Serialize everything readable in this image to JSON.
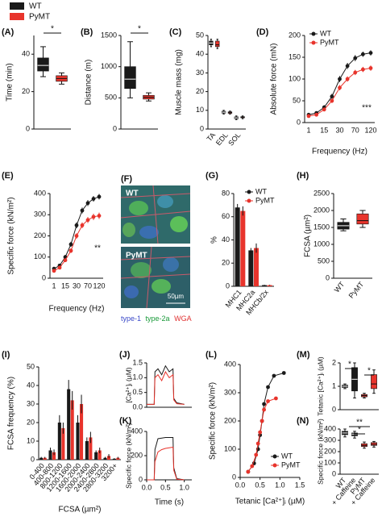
{
  "legend": [
    {
      "name": "WT",
      "color": "#1a1a1a"
    },
    {
      "name": "PyMT",
      "color": "#e8342c"
    }
  ],
  "image_panel": {
    "label": "(F)",
    "labels": [
      "WT",
      "PyMT"
    ],
    "scale_bar": "50µm",
    "caption": [
      {
        "text": "type-1",
        "color": "#3a49c8"
      },
      {
        "text": "type-2a",
        "color": "#1a9a3a"
      },
      {
        "text": "WGA",
        "color": "#e03030"
      }
    ]
  },
  "chart_data": [
    {
      "type": "box",
      "label": "(A)",
      "ylabel": "Time (min)",
      "ylim": [
        0,
        50
      ],
      "yticks": [
        0,
        20,
        40
      ],
      "annotations": [
        "*"
      ],
      "series": [
        {
          "color": "#1a1a1a",
          "min": [
            28
          ],
          "q1": [
            31
          ],
          "median": [
            34
          ],
          "q3": [
            38
          ],
          "max": [
            44
          ]
        },
        {
          "color": "#e8342c",
          "min": [
            24
          ],
          "q1": [
            25.5
          ],
          "median": [
            27
          ],
          "q3": [
            28.5
          ],
          "max": [
            30
          ]
        }
      ]
    },
    {
      "type": "box",
      "label": "(B)",
      "ylabel": "Distance (m)",
      "ylim": [
        0,
        1500
      ],
      "yticks": [
        0,
        500,
        1000,
        1500
      ],
      "annotations": [
        "*"
      ],
      "series": [
        {
          "color": "#1a1a1a",
          "min": [
            500
          ],
          "q1": [
            650
          ],
          "median": [
            800
          ],
          "q3": [
            1000
          ],
          "max": [
            1400
          ]
        },
        {
          "color": "#e8342c",
          "min": [
            450
          ],
          "q1": [
            480
          ],
          "median": [
            510
          ],
          "q3": [
            540
          ],
          "max": [
            580
          ]
        }
      ]
    },
    {
      "type": "box",
      "label": "(C)",
      "ylabel": "Muscle mass (mg)",
      "ylim": [
        0,
        50
      ],
      "yticks": [
        0,
        10,
        20,
        30,
        40,
        50
      ],
      "categories": [
        "TA",
        "EDL",
        "SOL"
      ],
      "series": [
        {
          "color": "#1a1a1a",
          "min": [
            44,
            8,
            5
          ],
          "q1": [
            45,
            8.5,
            5.5
          ],
          "median": [
            46,
            9,
            6
          ],
          "q3": [
            47,
            9.5,
            6.5
          ],
          "max": [
            48,
            10,
            7
          ]
        },
        {
          "color": "#e8342c",
          "min": [
            43,
            8,
            5.5
          ],
          "q1": [
            44,
            8.4,
            6
          ],
          "median": [
            45,
            8.8,
            6.3
          ],
          "q3": [
            47,
            9.2,
            6.6
          ],
          "max": [
            48,
            9.6,
            7
          ]
        }
      ]
    },
    {
      "type": "line",
      "label": "(D)",
      "ylabel": "Absolute force (mN)",
      "xlabel": "Frequency (Hz)",
      "ylim": [
        0,
        200
      ],
      "yticks": [
        0,
        50,
        100,
        150,
        200
      ],
      "legend": "upper left",
      "markers": true,
      "annotations": [
        "***"
      ],
      "categories": [
        "1",
        null,
        "15",
        null,
        "30",
        null,
        "70",
        null,
        "120"
      ],
      "series": [
        {
          "name": "WT",
          "color": "#1a1a1a",
          "values": [
            18,
            22,
            35,
            60,
            100,
            130,
            148,
            157,
            160
          ],
          "errors": [
            3,
            3,
            5,
            6,
            7,
            7,
            7,
            6,
            6
          ]
        },
        {
          "name": "PyMT",
          "color": "#e8342c",
          "values": [
            15,
            18,
            30,
            50,
            80,
            100,
            115,
            122,
            125
          ],
          "errors": [
            3,
            3,
            4,
            5,
            6,
            6,
            6,
            6,
            6
          ]
        }
      ]
    },
    {
      "type": "line",
      "label": "(E)",
      "ylabel": "Specific force (kN/m²)",
      "xlabel": "Frequency (Hz)",
      "ylim": [
        0,
        400
      ],
      "yticks": [
        0,
        100,
        200,
        300,
        400
      ],
      "markers": true,
      "annotations": [
        "**"
      ],
      "categories": [
        "1",
        null,
        "15",
        null,
        "30",
        null,
        "70",
        null,
        "120"
      ],
      "series": [
        {
          "color": "#1a1a1a",
          "values": [
            45,
            60,
            100,
            160,
            250,
            320,
            355,
            375,
            385
          ],
          "errors": [
            6,
            8,
            10,
            12,
            14,
            14,
            14,
            13,
            13
          ]
        },
        {
          "color": "#e8342c",
          "values": [
            35,
            50,
            85,
            130,
            200,
            250,
            275,
            290,
            295
          ],
          "errors": [
            6,
            7,
            9,
            11,
            13,
            14,
            14,
            15,
            15
          ]
        }
      ]
    },
    {
      "type": "bar",
      "label": "(G)",
      "ylabel": "%",
      "ylim": [
        0,
        80
      ],
      "yticks": [
        0,
        20,
        40,
        60,
        80
      ],
      "legend": "upper right",
      "categories": [
        "MHC1",
        "MHC2a",
        "MHCb/2x"
      ],
      "series": [
        {
          "name": "WT",
          "color": "#1a1a1a",
          "values": [
            68,
            31,
            1
          ],
          "errors": [
            3,
            2,
            0.3
          ]
        },
        {
          "name": "PyMT",
          "color": "#e8342c",
          "values": [
            65,
            33,
            1
          ],
          "errors": [
            4,
            4,
            0.3
          ]
        }
      ]
    },
    {
      "type": "box",
      "label": "(H)",
      "ylabel": "FCSA (µm²)",
      "ylim": [
        0,
        2500
      ],
      "yticks": [
        0,
        500,
        1000,
        1500,
        2000,
        2500
      ],
      "categories": [
        "WT",
        "PyMT"
      ],
      "series": [
        {
          "color": "#1a1a1a",
          "min": [
            1400
          ],
          "q1": [
            1450
          ],
          "median": [
            1550
          ],
          "q3": [
            1650
          ],
          "max": [
            1750
          ]
        },
        {
          "color": "#e8342c",
          "min": [
            1500
          ],
          "q1": [
            1600
          ],
          "median": [
            1700
          ],
          "q3": [
            1900
          ],
          "max": [
            2000
          ]
        }
      ]
    },
    {
      "type": "bar",
      "label": "(I)",
      "ylabel": "FCSA frequency (%)",
      "xlabel": "FCSA (µm²)",
      "ylim": [
        0,
        50
      ],
      "yticks": [
        0,
        10,
        20,
        30,
        40,
        50
      ],
      "categories": [
        "0-400",
        "400-800",
        "800-1200",
        "1200-1600",
        "1600-2000",
        "2000-2400",
        "2400-2800",
        "2800-3200",
        "3200+"
      ],
      "series": [
        {
          "color": "#1a1a1a",
          "values": [
            1,
            5,
            20,
            38,
            20,
            10,
            4,
            1,
            0.5
          ],
          "errors": [
            0.5,
            1.5,
            4,
            5,
            4,
            2,
            1,
            0.5,
            0.3
          ]
        },
        {
          "color": "#e8342c",
          "values": [
            1,
            4,
            17,
            32,
            30,
            12,
            5,
            2,
            1
          ],
          "errors": [
            0.5,
            1.5,
            3,
            5,
            5,
            3,
            1.5,
            1,
            0.5
          ]
        }
      ]
    },
    {
      "type": "line",
      "label": "(J)",
      "ylabel": "[Ca²⁺]ᵢ (µM)",
      "ylim": [
        0,
        1.5
      ],
      "yticks": [
        {
          "value": 0,
          "label": "0.0"
        },
        0.5,
        {
          "value": 1,
          "label": "1.0"
        },
        1.5
      ],
      "xlim": [
        0,
        1.2
      ],
      "markers": false,
      "x": [
        0,
        0.1,
        0.2,
        0.22,
        0.3,
        0.4,
        0.5,
        0.6,
        0.7,
        0.72,
        0.8,
        1.0
      ],
      "series": [
        {
          "color": "#1a1a1a",
          "values": [
            0.1,
            0.1,
            0.1,
            1.2,
            1.3,
            1.1,
            1.4,
            1.2,
            1.3,
            0.3,
            0.15,
            0.1
          ]
        },
        {
          "color": "#e8342c",
          "values": [
            0.1,
            0.1,
            0.1,
            1.0,
            1.1,
            0.9,
            1.2,
            1.0,
            1.1,
            0.25,
            0.12,
            0.1
          ]
        }
      ]
    },
    {
      "type": "line",
      "label": "(K)",
      "ylabel": "Specific force (kN/m²)",
      "xlabel": "Time (s)",
      "ylim": [
        0,
        400
      ],
      "yticks": [
        0,
        200,
        400
      ],
      "xlim": [
        0,
        1.2
      ],
      "xticks": [
        {
          "value": 0,
          "label": "0.0"
        },
        0.5,
        {
          "value": 1,
          "label": "1.0"
        }
      ],
      "markers": false,
      "x": [
        0,
        0.1,
        0.2,
        0.22,
        0.3,
        0.4,
        0.5,
        0.6,
        0.7,
        0.72,
        0.8,
        1.0
      ],
      "series": [
        {
          "color": "#1a1a1a",
          "values": [
            0,
            0,
            0,
            250,
            340,
            345,
            350,
            350,
            350,
            100,
            10,
            0
          ]
        },
        {
          "color": "#e8342c",
          "values": [
            0,
            0,
            0,
            150,
            230,
            250,
            260,
            265,
            270,
            80,
            5,
            0
          ]
        }
      ]
    },
    {
      "type": "line",
      "label": "(L)",
      "ylabel": "Specific force (kN/m²)",
      "xlabel": "Tetanic [Ca²⁺]ᵢ (µM)",
      "ylim": [
        0,
        400
      ],
      "yticks": [
        0,
        100,
        200,
        300,
        400
      ],
      "xlim": [
        0,
        1.5
      ],
      "xticks": [
        {
          "value": 0,
          "label": "0.0"
        },
        0.5,
        {
          "value": 1,
          "label": "1.0"
        },
        1.5
      ],
      "markers": true,
      "legend": "lower right",
      "series": [
        {
          "name": "WT",
          "color": "#1a1a1a",
          "x": [
            0.2,
            0.35,
            0.45,
            0.5,
            0.55,
            0.6,
            0.7,
            0.85,
            1.1
          ],
          "values": [
            20,
            50,
            100,
            150,
            200,
            260,
            320,
            360,
            370
          ]
        },
        {
          "name": "PyMT",
          "color": "#e8342c",
          "x": [
            0.2,
            0.3,
            0.4,
            0.45,
            0.5,
            0.55,
            0.6,
            0.7,
            0.9
          ],
          "values": [
            20,
            40,
            80,
            120,
            160,
            200,
            240,
            270,
            280
          ]
        }
      ]
    },
    {
      "type": "box",
      "label": "(M)",
      "ylabel": "Tetanic [Ca²⁺]ᵢ (µM)",
      "ylim": [
        0,
        2
      ],
      "yticks": [
        0,
        1,
        2
      ],
      "annotations": [
        "*",
        "*"
      ],
      "series": [
        {
          "color": "#1a1a1a",
          "min": [
            0.9
          ],
          "q1": [
            0.95
          ],
          "median": [
            1.0
          ],
          "q3": [
            1.05
          ],
          "max": [
            1.1
          ]
        },
        {
          "color": "#1a1a1a",
          "min": [
            0.5
          ],
          "q1": [
            0.8
          ],
          "median": [
            1.3
          ],
          "q3": [
            1.8
          ],
          "max": [
            2.0
          ]
        },
        {
          "color": "#e8342c",
          "min": [
            0.5
          ],
          "q1": [
            0.55
          ],
          "median": [
            0.6
          ],
          "q3": [
            0.65
          ],
          "max": [
            0.7
          ]
        },
        {
          "color": "#e8342c",
          "min": [
            0.7
          ],
          "q1": [
            0.9
          ],
          "median": [
            1.1
          ],
          "q3": [
            1.5
          ],
          "max": [
            1.7
          ]
        }
      ]
    },
    {
      "type": "box",
      "label": "(N)",
      "ylabel": "Specific force (kN/m²)",
      "ylim": [
        0,
        400
      ],
      "yticks": [
        0,
        100,
        200,
        300,
        400
      ],
      "categories": [
        "WT",
        "+ Caffeine",
        "PyMT",
        "+ Caffeine"
      ],
      "annotations": [
        "**",
        "*"
      ],
      "series": [
        {
          "color": "#1a1a1a",
          "min": [
            330
          ],
          "q1": [
            350
          ],
          "median": [
            365
          ],
          "q3": [
            380
          ],
          "max": [
            400
          ]
        },
        {
          "color": "#1a1a1a",
          "min": [
            320
          ],
          "q1": [
            340
          ],
          "median": [
            355
          ],
          "q3": [
            365
          ],
          "max": [
            380
          ]
        },
        {
          "color": "#e8342c",
          "min": [
            230
          ],
          "q1": [
            245
          ],
          "median": [
            255
          ],
          "q3": [
            270
          ],
          "max": [
            285
          ]
        },
        {
          "color": "#e8342c",
          "min": [
            240
          ],
          "q1": [
            255
          ],
          "median": [
            265
          ],
          "q3": [
            280
          ],
          "max": [
            290
          ]
        }
      ]
    }
  ]
}
